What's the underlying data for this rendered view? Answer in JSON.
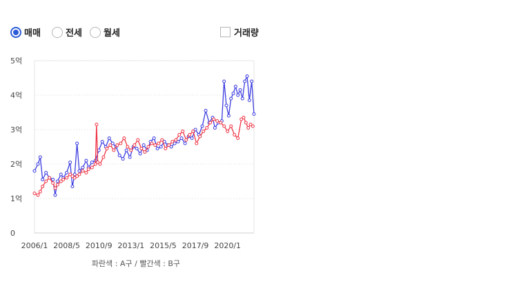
{
  "controls": {
    "radios": [
      {
        "label": "매매",
        "selected": true
      },
      {
        "label": "전세",
        "selected": false
      },
      {
        "label": "월세",
        "selected": false
      }
    ],
    "checkbox": {
      "label": "거래량",
      "checked": false
    }
  },
  "colors": {
    "series_a": "#3a3ae0",
    "series_b": "#ee3344",
    "accent": "#2d5bd8"
  },
  "chart_data": {
    "type": "line",
    "title": "",
    "xlabel": "",
    "ylabel": "",
    "caption": "파란색 : A구 / 빨간색 : B구",
    "ylim": [
      0,
      5
    ],
    "xlim": [
      "2006-01",
      "2021-12"
    ],
    "y_ticks": [
      {
        "value": 0,
        "label": "0"
      },
      {
        "value": 1,
        "label": "1억"
      },
      {
        "value": 2,
        "label": "2억"
      },
      {
        "value": 3,
        "label": "3억"
      },
      {
        "value": 4,
        "label": "4억"
      },
      {
        "value": 5,
        "label": "5억"
      }
    ],
    "x_ticks": [
      {
        "value": "2006-01",
        "label": "2006/1"
      },
      {
        "value": "2008-05",
        "label": "2008/5"
      },
      {
        "value": "2010-09",
        "label": "2010/9"
      },
      {
        "value": "2013-01",
        "label": "2013/1"
      },
      {
        "value": "2015-05",
        "label": "2015/5"
      },
      {
        "value": "2017-09",
        "label": "2017/9"
      },
      {
        "value": "2020-01",
        "label": "2020/1"
      }
    ],
    "grid": true,
    "series": [
      {
        "color": "#3a3ae0",
        "points": [
          [
            "2006-01",
            1.8
          ],
          [
            "2006-04",
            2.0
          ],
          [
            "2006-06",
            2.2
          ],
          [
            "2006-08",
            1.55
          ],
          [
            "2006-11",
            1.75
          ],
          [
            "2007-02",
            1.6
          ],
          [
            "2007-05",
            1.55
          ],
          [
            "2007-07",
            1.1
          ],
          [
            "2007-09",
            1.5
          ],
          [
            "2007-12",
            1.7
          ],
          [
            "2008-02",
            1.6
          ],
          [
            "2008-05",
            1.75
          ],
          [
            "2008-08",
            2.05
          ],
          [
            "2008-10",
            1.35
          ],
          [
            "2008-12",
            1.7
          ],
          [
            "2009-02",
            2.6
          ],
          [
            "2009-04",
            1.8
          ],
          [
            "2009-07",
            1.9
          ],
          [
            "2009-10",
            2.1
          ],
          [
            "2009-12",
            1.9
          ],
          [
            "2010-03",
            2.05
          ],
          [
            "2010-06",
            2.1
          ],
          [
            "2010-09",
            2.4
          ],
          [
            "2010-12",
            2.65
          ],
          [
            "2011-03",
            2.5
          ],
          [
            "2011-06",
            2.75
          ],
          [
            "2011-09",
            2.6
          ],
          [
            "2011-12",
            2.5
          ],
          [
            "2012-03",
            2.25
          ],
          [
            "2012-06",
            2.15
          ],
          [
            "2012-09",
            2.4
          ],
          [
            "2012-12",
            2.2
          ],
          [
            "2013-03",
            2.5
          ],
          [
            "2013-06",
            2.45
          ],
          [
            "2013-09",
            2.3
          ],
          [
            "2013-12",
            2.55
          ],
          [
            "2014-03",
            2.4
          ],
          [
            "2014-06",
            2.65
          ],
          [
            "2014-09",
            2.75
          ],
          [
            "2014-12",
            2.45
          ],
          [
            "2015-03",
            2.5
          ],
          [
            "2015-06",
            2.65
          ],
          [
            "2015-09",
            2.55
          ],
          [
            "2015-12",
            2.5
          ],
          [
            "2016-03",
            2.6
          ],
          [
            "2016-06",
            2.65
          ],
          [
            "2016-09",
            2.75
          ],
          [
            "2016-12",
            2.6
          ],
          [
            "2017-03",
            2.8
          ],
          [
            "2017-06",
            2.75
          ],
          [
            "2017-09",
            3.0
          ],
          [
            "2017-12",
            2.85
          ],
          [
            "2018-03",
            3.1
          ],
          [
            "2018-06",
            3.55
          ],
          [
            "2018-09",
            3.2
          ],
          [
            "2018-12",
            3.35
          ],
          [
            "2019-02",
            3.05
          ],
          [
            "2019-05",
            3.2
          ],
          [
            "2019-08",
            3.25
          ],
          [
            "2019-10",
            4.4
          ],
          [
            "2019-12",
            3.7
          ],
          [
            "2020-02",
            3.4
          ],
          [
            "2020-04",
            3.9
          ],
          [
            "2020-06",
            4.05
          ],
          [
            "2020-08",
            4.25
          ],
          [
            "2020-10",
            4.0
          ],
          [
            "2020-12",
            4.15
          ],
          [
            "2021-02",
            3.9
          ],
          [
            "2021-04",
            4.4
          ],
          [
            "2021-06",
            4.55
          ],
          [
            "2021-08",
            3.85
          ],
          [
            "2021-10",
            4.4
          ],
          [
            "2021-12",
            3.45
          ]
        ]
      },
      {
        "color": "#ee3344",
        "points": [
          [
            "2006-01",
            1.15
          ],
          [
            "2006-04",
            1.1
          ],
          [
            "2006-06",
            1.2
          ],
          [
            "2006-08",
            1.35
          ],
          [
            "2006-11",
            1.5
          ],
          [
            "2007-02",
            1.6
          ],
          [
            "2007-05",
            1.45
          ],
          [
            "2007-07",
            1.3
          ],
          [
            "2007-09",
            1.4
          ],
          [
            "2007-12",
            1.5
          ],
          [
            "2008-02",
            1.55
          ],
          [
            "2008-05",
            1.6
          ],
          [
            "2008-08",
            1.7
          ],
          [
            "2008-10",
            1.65
          ],
          [
            "2008-12",
            1.6
          ],
          [
            "2009-02",
            1.65
          ],
          [
            "2009-04",
            1.7
          ],
          [
            "2009-07",
            1.8
          ],
          [
            "2009-10",
            1.75
          ],
          [
            "2009-12",
            1.85
          ],
          [
            "2010-03",
            1.9
          ],
          [
            "2010-06",
            2.0
          ],
          [
            "2010-07",
            3.15
          ],
          [
            "2010-08",
            2.05
          ],
          [
            "2010-10",
            2.0
          ],
          [
            "2011-01",
            2.2
          ],
          [
            "2011-04",
            2.45
          ],
          [
            "2011-07",
            2.55
          ],
          [
            "2011-10",
            2.4
          ],
          [
            "2012-01",
            2.55
          ],
          [
            "2012-04",
            2.6
          ],
          [
            "2012-07",
            2.75
          ],
          [
            "2012-10",
            2.5
          ],
          [
            "2013-01",
            2.4
          ],
          [
            "2013-04",
            2.55
          ],
          [
            "2013-07",
            2.7
          ],
          [
            "2013-10",
            2.45
          ],
          [
            "2014-01",
            2.35
          ],
          [
            "2014-04",
            2.5
          ],
          [
            "2014-07",
            2.6
          ],
          [
            "2014-10",
            2.55
          ],
          [
            "2015-01",
            2.6
          ],
          [
            "2015-04",
            2.7
          ],
          [
            "2015-07",
            2.45
          ],
          [
            "2015-10",
            2.55
          ],
          [
            "2016-01",
            2.65
          ],
          [
            "2016-04",
            2.7
          ],
          [
            "2016-07",
            2.85
          ],
          [
            "2016-10",
            2.95
          ],
          [
            "2017-01",
            2.7
          ],
          [
            "2017-04",
            2.85
          ],
          [
            "2017-07",
            2.95
          ],
          [
            "2017-10",
            2.6
          ],
          [
            "2018-01",
            2.8
          ],
          [
            "2018-04",
            2.95
          ],
          [
            "2018-07",
            3.05
          ],
          [
            "2018-10",
            3.2
          ],
          [
            "2019-01",
            3.3
          ],
          [
            "2019-04",
            3.25
          ],
          [
            "2019-07",
            3.2
          ],
          [
            "2019-10",
            3.1
          ],
          [
            "2020-01",
            2.95
          ],
          [
            "2020-04",
            3.1
          ],
          [
            "2020-07",
            2.85
          ],
          [
            "2020-10",
            2.75
          ],
          [
            "2021-01",
            3.3
          ],
          [
            "2021-03",
            3.35
          ],
          [
            "2021-05",
            3.2
          ],
          [
            "2021-07",
            3.05
          ],
          [
            "2021-09",
            3.15
          ],
          [
            "2021-11",
            3.1
          ]
        ]
      }
    ]
  }
}
